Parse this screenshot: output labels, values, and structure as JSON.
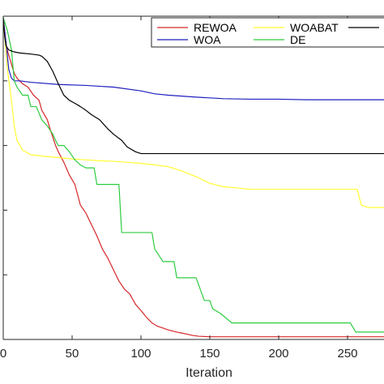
{
  "chart_data": {
    "type": "line",
    "title": "",
    "xlabel": "Iteration",
    "ylabel": "",
    "xlim": [
      0,
      280
    ],
    "y_scale": "log",
    "ylim": [
      1e-05,
      1
    ],
    "x_ticks": [
      0,
      50,
      100,
      150,
      200,
      250
    ],
    "x_tick_labels": [
      "0",
      "50",
      "100",
      "150",
      "200",
      "250"
    ],
    "grid": false,
    "legend_position": "top-right",
    "series": [
      {
        "name": "REWOA",
        "color": "#d62728",
        "x": [
          0,
          1,
          2,
          4,
          6,
          8,
          10,
          14,
          18,
          22,
          26,
          28,
          32,
          34,
          38,
          40,
          44,
          48,
          52,
          56,
          60,
          64,
          68,
          72,
          76,
          80,
          84,
          88,
          92,
          96,
          100,
          104,
          108,
          112,
          116,
          120,
          126,
          130,
          134,
          138,
          142,
          150,
          280
        ],
        "y": [
          0.9,
          0.6,
          0.35,
          0.25,
          0.18,
          0.13,
          0.11,
          0.09,
          0.08,
          0.06,
          0.05,
          0.035,
          0.025,
          0.018,
          0.01,
          0.008,
          0.0055,
          0.0035,
          0.0025,
          0.0012,
          0.0009,
          0.0006,
          0.0004,
          0.00025,
          0.00018,
          0.00012,
          8e-05,
          6e-05,
          5e-05,
          3.5e-05,
          2.8e-05,
          2.2e-05,
          1.8e-05,
          1.6e-05,
          1.5e-05,
          1.4e-05,
          1.3e-05,
          1.25e-05,
          1.2e-05,
          1.15e-05,
          1.12e-05,
          1.1e-05,
          1.1e-05
        ]
      },
      {
        "name": "WOA",
        "color": "#1f1fbf",
        "x": [
          0,
          2,
          4,
          6,
          8,
          12,
          20,
          40,
          60,
          80,
          100,
          110,
          120,
          140,
          160,
          180,
          200,
          220,
          240,
          260,
          280
        ],
        "y": [
          0.95,
          0.4,
          0.15,
          0.11,
          0.1,
          0.1,
          0.095,
          0.088,
          0.085,
          0.08,
          0.07,
          0.063,
          0.06,
          0.056,
          0.053,
          0.052,
          0.052,
          0.051,
          0.051,
          0.051,
          0.051
        ]
      },
      {
        "name": "WOABAT",
        "color": "#ffff33",
        "x": [
          0,
          3,
          6,
          8,
          10,
          14,
          20,
          30,
          40,
          50,
          60,
          70,
          80,
          90,
          100,
          110,
          120,
          130,
          140,
          150,
          160,
          170,
          180,
          200,
          220,
          240,
          250,
          257,
          260,
          265,
          280
        ],
        "y": [
          0.9,
          0.15,
          0.05,
          0.02,
          0.012,
          0.0085,
          0.0072,
          0.0068,
          0.0065,
          0.0062,
          0.006,
          0.0058,
          0.0057,
          0.0055,
          0.0053,
          0.005,
          0.0047,
          0.004,
          0.0033,
          0.0026,
          0.0023,
          0.0022,
          0.0021,
          0.0021,
          0.0021,
          0.0021,
          0.0021,
          0.0021,
          0.0012,
          0.0011,
          0.0011
        ]
      },
      {
        "name": "DE",
        "color": "#2ecc40",
        "x": [
          0,
          3,
          6,
          8,
          10,
          14,
          18,
          20,
          24,
          28,
          32,
          36,
          38,
          40,
          44,
          48,
          52,
          56,
          60,
          66,
          68,
          72,
          80,
          84,
          86,
          88,
          94,
          100,
          104,
          108,
          110,
          116,
          122,
          124,
          126,
          130,
          134,
          140,
          146,
          150,
          152,
          158,
          166,
          180,
          200,
          220,
          240,
          252,
          256,
          268,
          280
        ],
        "y": [
          0.95,
          0.6,
          0.3,
          0.1,
          0.08,
          0.06,
          0.06,
          0.04,
          0.04,
          0.025,
          0.02,
          0.015,
          0.012,
          0.01,
          0.01,
          0.008,
          0.006,
          0.005,
          0.0045,
          0.0045,
          0.0025,
          0.0025,
          0.0025,
          0.0025,
          0.00045,
          0.00045,
          0.00045,
          0.00045,
          0.00045,
          0.00045,
          0.00025,
          0.00016,
          0.00016,
          0.00016,
          9e-05,
          9e-05,
          9e-05,
          9e-05,
          4e-05,
          4e-05,
          3e-05,
          2.5e-05,
          1.8e-05,
          1.8e-05,
          1.8e-05,
          1.8e-05,
          1.8e-05,
          1.8e-05,
          1.3e-05,
          1.3e-05,
          1.3e-05
        ]
      },
      {
        "name": "",
        "color": "#000000",
        "x": [
          0,
          1,
          2,
          4,
          8,
          12,
          20,
          26,
          28,
          32,
          36,
          40,
          44,
          48,
          52,
          56,
          60,
          64,
          70,
          76,
          80,
          86,
          90,
          96,
          100,
          110,
          120,
          150,
          200,
          250,
          280
        ],
        "y": [
          0.95,
          0.5,
          0.35,
          0.3,
          0.28,
          0.27,
          0.26,
          0.25,
          0.24,
          0.2,
          0.14,
          0.09,
          0.06,
          0.05,
          0.045,
          0.04,
          0.035,
          0.03,
          0.025,
          0.018,
          0.015,
          0.012,
          0.0095,
          0.008,
          0.0075,
          0.0075,
          0.0075,
          0.0075,
          0.0075,
          0.0075,
          0.0075
        ]
      }
    ],
    "legend_entries": [
      {
        "label": "REWOA",
        "color": "#d62728"
      },
      {
        "label": "WOABAT",
        "color": "#ffff33"
      },
      {
        "label": "",
        "color": "#000000"
      },
      {
        "label": "WOA",
        "color": "#1f1fbf"
      },
      {
        "label": "DE",
        "color": "#2ecc40"
      }
    ]
  }
}
